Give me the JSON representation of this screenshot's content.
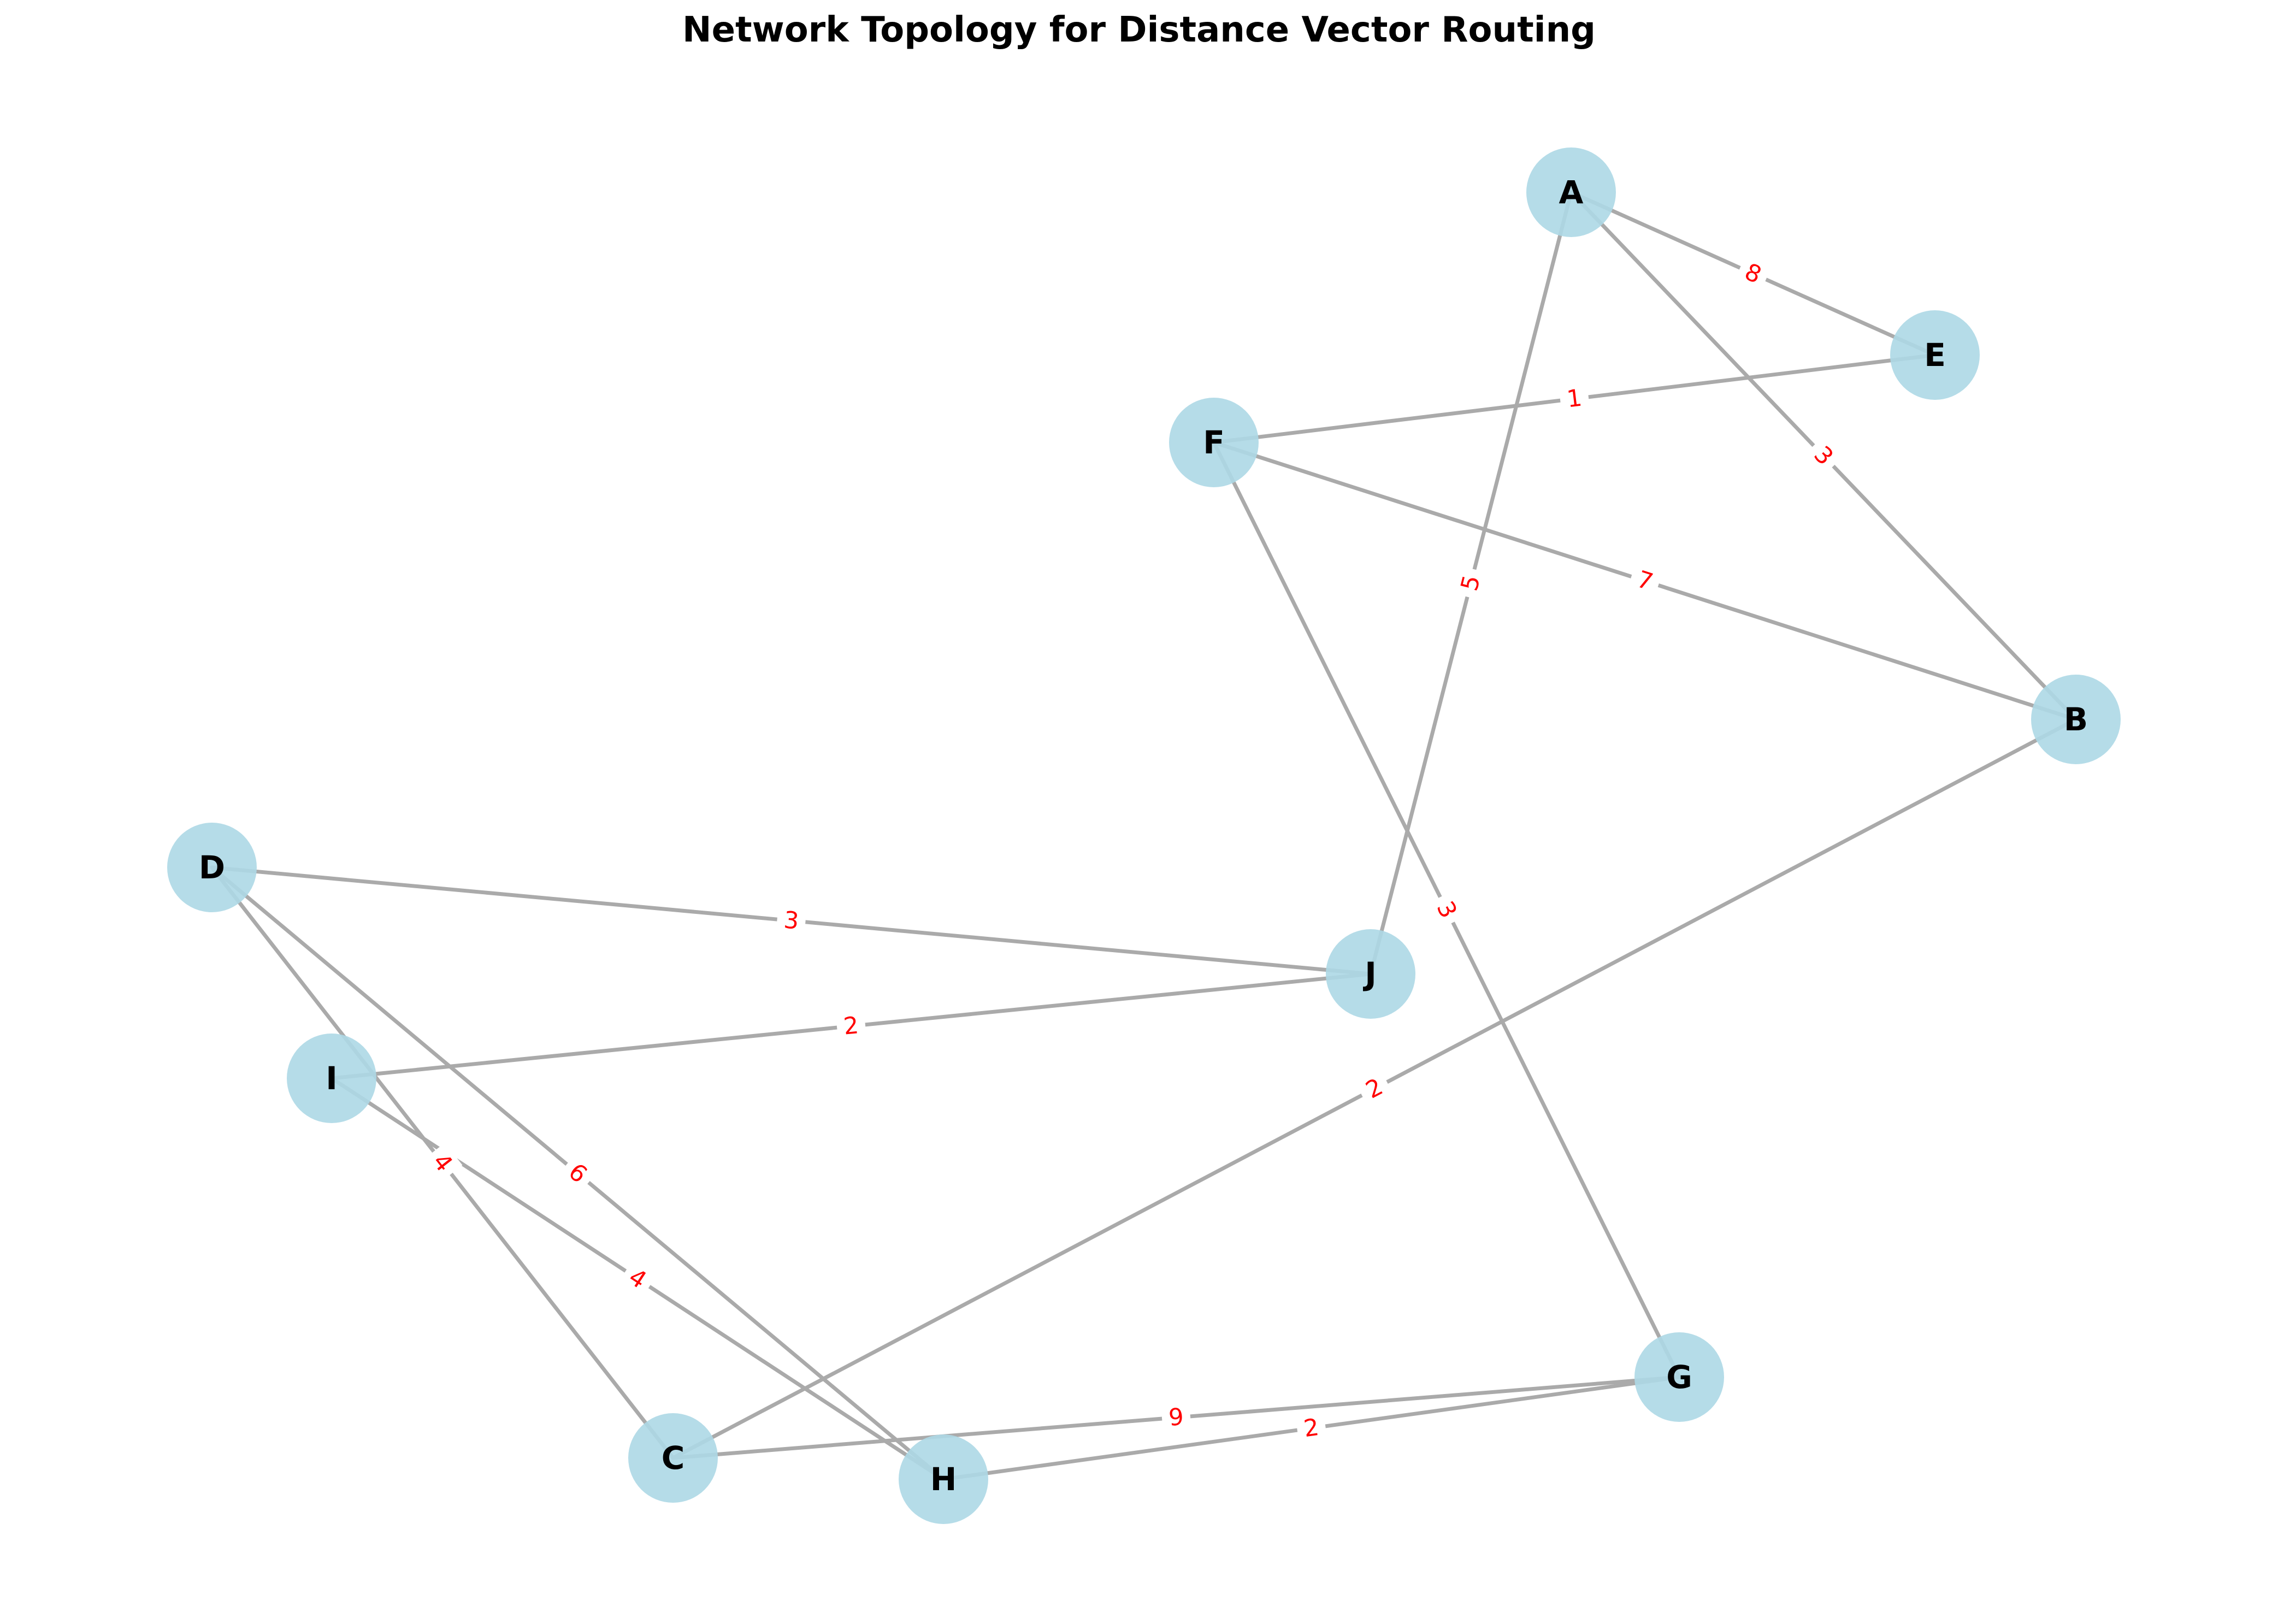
{
  "title": "Network Topology for Distance Vector Routing",
  "colors": {
    "node_fill": "#add8e6",
    "edge": "#aaaaaa",
    "edge_label": "#ff0000",
    "node_label": "#000000"
  },
  "nodes": [
    {
      "id": "A",
      "label": "A"
    },
    {
      "id": "B",
      "label": "B"
    },
    {
      "id": "C",
      "label": "C"
    },
    {
      "id": "D",
      "label": "D"
    },
    {
      "id": "E",
      "label": "E"
    },
    {
      "id": "F",
      "label": "F"
    },
    {
      "id": "G",
      "label": "G"
    },
    {
      "id": "H",
      "label": "H"
    },
    {
      "id": "I",
      "label": "I"
    },
    {
      "id": "J",
      "label": "J"
    }
  ],
  "edges": [
    {
      "source": "A",
      "target": "E",
      "weight": "8"
    },
    {
      "source": "A",
      "target": "B",
      "weight": "3"
    },
    {
      "source": "A",
      "target": "J",
      "weight": "5"
    },
    {
      "source": "F",
      "target": "E",
      "weight": "1"
    },
    {
      "source": "F",
      "target": "B",
      "weight": "7"
    },
    {
      "source": "F",
      "target": "G",
      "weight": "3"
    },
    {
      "source": "B",
      "target": "C",
      "weight": "2"
    },
    {
      "source": "D",
      "target": "J",
      "weight": "3"
    },
    {
      "source": "D",
      "target": "C",
      "weight": "4"
    },
    {
      "source": "D",
      "target": "H",
      "weight": "6"
    },
    {
      "source": "I",
      "target": "J",
      "weight": "2"
    },
    {
      "source": "I",
      "target": "H",
      "weight": "4"
    },
    {
      "source": "C",
      "target": "G",
      "weight": "9"
    },
    {
      "source": "H",
      "target": "G",
      "weight": "2"
    }
  ]
}
